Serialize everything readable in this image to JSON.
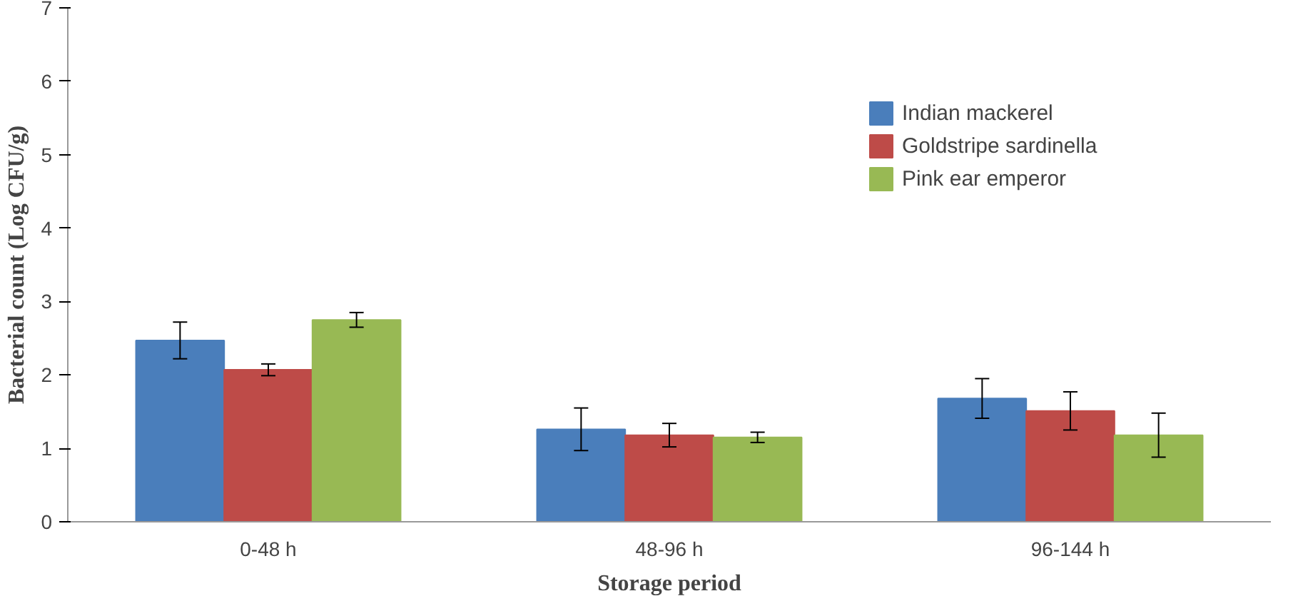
{
  "chart_data": {
    "type": "bar",
    "xlabel": "Storage period",
    "ylabel": "Bacterial count (Log CFU/g)",
    "categories": [
      "0-48 h",
      "48-96 h",
      "96-144 h"
    ],
    "series": [
      {
        "name": "Indian mackerel",
        "color": "#4a7ebb",
        "values": [
          2.47,
          1.26,
          1.68
        ],
        "errors": [
          0.25,
          0.29,
          0.27
        ]
      },
      {
        "name": "Goldstripe sardinella",
        "color": "#be4b48",
        "values": [
          2.07,
          1.18,
          1.51
        ],
        "errors": [
          0.08,
          0.16,
          0.26
        ]
      },
      {
        "name": "Pink ear emperor",
        "color": "#98b954",
        "values": [
          2.75,
          1.15,
          1.18
        ],
        "errors": [
          0.1,
          0.07,
          0.3
        ]
      }
    ],
    "ylim": [
      0,
      7
    ],
    "yticks": [
      0,
      1,
      2,
      3,
      4,
      5,
      6,
      7
    ],
    "grid": false,
    "legend": "right"
  }
}
